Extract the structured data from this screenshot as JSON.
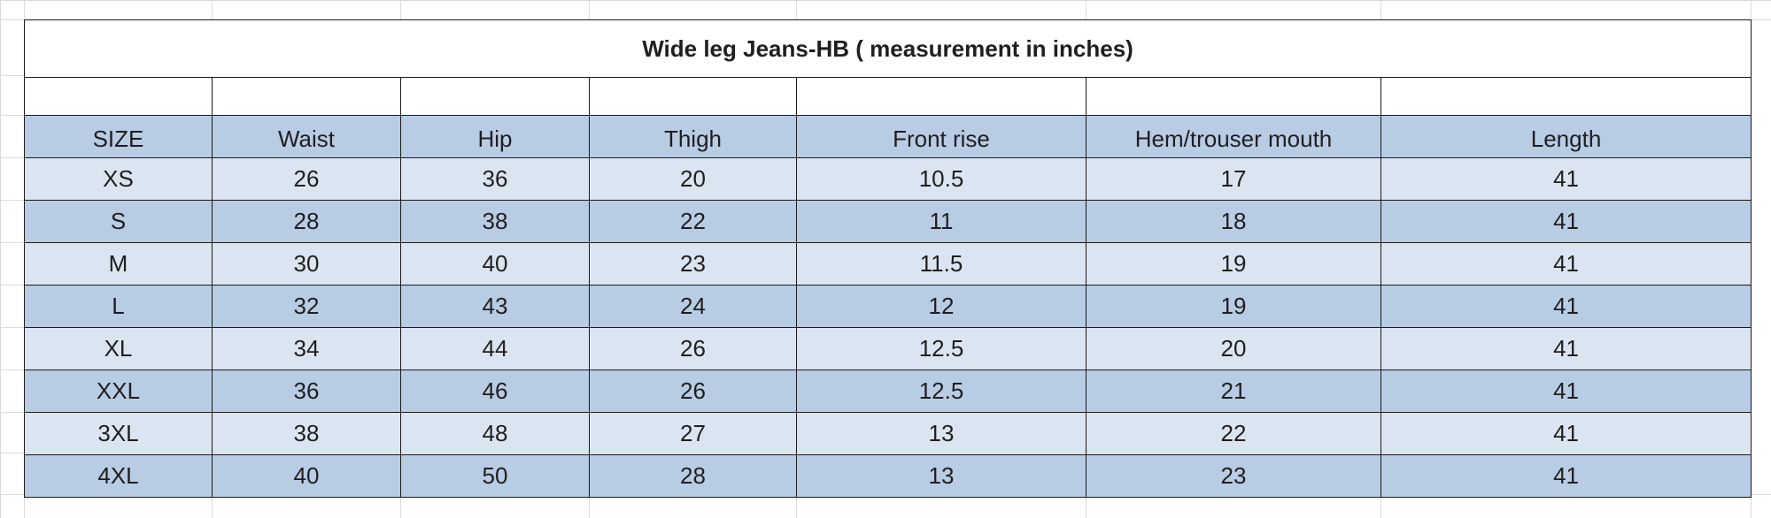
{
  "table": {
    "title": "Wide leg Jeans-HB ( measurement in inches)",
    "headers": [
      "SIZE",
      "Waist",
      "Hip",
      "Thigh",
      "Front rise",
      "Hem/trouser mouth",
      "Length"
    ],
    "rows": [
      [
        "XS",
        "26",
        "36",
        "20",
        "10.5",
        "17",
        "41"
      ],
      [
        "S",
        "28",
        "38",
        "22",
        "11",
        "18",
        "41"
      ],
      [
        "M",
        "30",
        "40",
        "23",
        "11.5",
        "19",
        "41"
      ],
      [
        "L",
        "32",
        "43",
        "24",
        "12",
        "19",
        "41"
      ],
      [
        "XL",
        "34",
        "44",
        "26",
        "12.5",
        "20",
        "41"
      ],
      [
        "XXL",
        "36",
        "46",
        "26",
        "12.5",
        "21",
        "41"
      ],
      [
        "3XL",
        "38",
        "48",
        "27",
        "13",
        "22",
        "41"
      ],
      [
        "4XL",
        "40",
        "50",
        "28",
        "13",
        "23",
        "41"
      ]
    ]
  },
  "colors": {
    "header_fill": "#b8cce4",
    "row_light": "#dbe5f1",
    "row_dark": "#b8cce4",
    "border": "#1a1a1a"
  }
}
